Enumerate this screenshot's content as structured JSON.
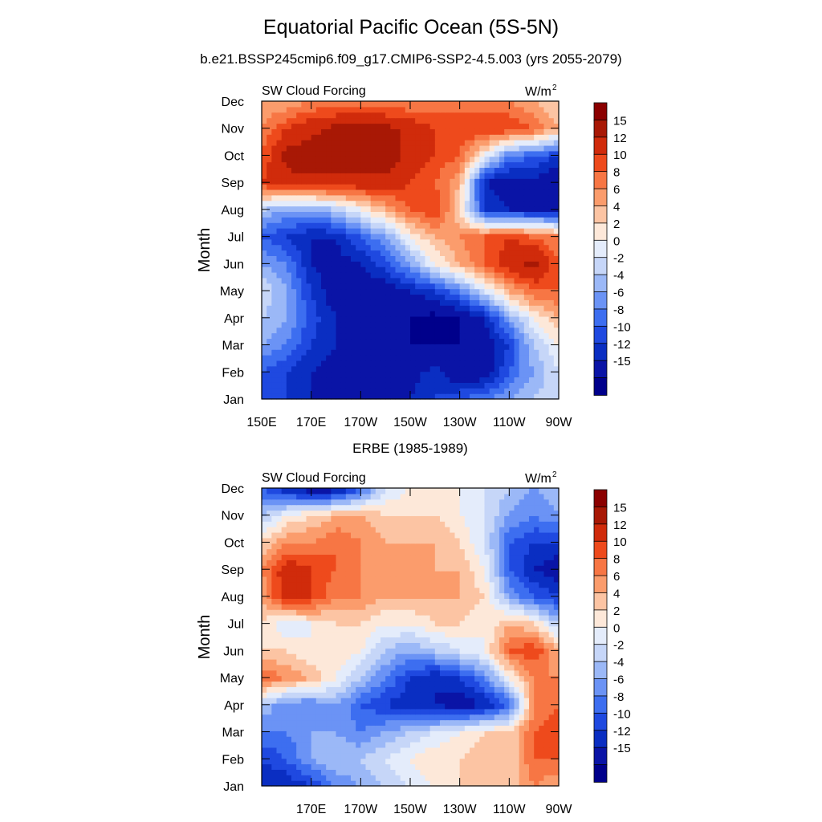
{
  "title": "Equatorial Pacific Ocean (5S-5N)",
  "subtitle": "b.e21.BSSP245cmip6.f09_g17.CMIP6-SSP2-4.5.003 (yrs 2055-2079)",
  "palette": [
    "#00008b",
    "#0a14a6",
    "#0a2ec2",
    "#1f49e0",
    "#3d6ef0",
    "#6b93f5",
    "#9bb8f7",
    "#c6d6f8",
    "#e4ecfb",
    "#fde8d9",
    "#fcc4a3",
    "#fb9c6c",
    "#f77644",
    "#ee4a1c",
    "#d02b0b",
    "#a81805",
    "#8b0000"
  ],
  "chart_data": [
    {
      "type": "heatmap",
      "panel_title": "",
      "left_label": "SW Cloud Forcing",
      "units_label": "W/m",
      "units_sup": "2",
      "ylabel": "Month",
      "x_ticks": [
        "150E",
        "170E",
        "170W",
        "150W",
        "130W",
        "110W",
        "90W"
      ],
      "y_ticks": [
        "Jan",
        "Feb",
        "Mar",
        "Apr",
        "May",
        "Jun",
        "Jul",
        "Aug",
        "Sep",
        "Oct",
        "Nov",
        "Dec"
      ],
      "xlim": [
        "150E",
        "90W"
      ],
      "colorbar_levels": [
        15,
        12,
        10,
        8,
        6,
        4,
        2,
        0,
        -2,
        -4,
        -6,
        -8,
        -10,
        -12,
        -15
      ],
      "lon_samples": [
        "150E",
        "160E",
        "170E",
        "180",
        "170W",
        "160W",
        "150W",
        "140W",
        "130W",
        "120W",
        "110W",
        "100W",
        "90W"
      ],
      "values": [
        [
          -10,
          -10,
          -12,
          -13,
          -14,
          -14,
          -12,
          -10,
          -8,
          -6,
          -4,
          -2,
          0
        ],
        [
          -8,
          -10,
          -12,
          -14,
          -15,
          -15,
          -13,
          -11,
          -15,
          -14,
          -8,
          -4,
          0
        ],
        [
          -4,
          -6,
          -10,
          -12,
          -12,
          -14,
          -15,
          -15,
          -15,
          -14,
          -10,
          -2,
          2
        ],
        [
          -2,
          -4,
          -9,
          -12,
          -14,
          -14,
          -15,
          -16,
          -15,
          -12,
          -4,
          2,
          6
        ],
        [
          0,
          -4,
          -10,
          -14,
          -14,
          -14,
          -12,
          -10,
          -6,
          0,
          6,
          10,
          10
        ],
        [
          -4,
          -6,
          -12,
          -13,
          -12,
          -9,
          -4,
          2,
          6,
          10,
          14,
          16,
          10
        ],
        [
          -8,
          -10,
          -12,
          -12,
          -8,
          -4,
          2,
          6,
          8,
          10,
          12,
          10,
          8
        ],
        [
          -2,
          -4,
          -4,
          -2,
          2,
          6,
          10,
          12,
          4,
          -10,
          -12,
          -12,
          -12
        ],
        [
          12,
          14,
          14,
          14,
          14,
          14,
          12,
          10,
          6,
          -12,
          -14,
          -13,
          -15
        ],
        [
          10,
          16,
          17,
          17,
          17,
          17,
          14,
          12,
          10,
          2,
          -6,
          -8,
          -10
        ],
        [
          8,
          12,
          14,
          16,
          16,
          16,
          14,
          12,
          12,
          12,
          12,
          10,
          6
        ],
        [
          6,
          6,
          8,
          8,
          8,
          8,
          8,
          8,
          8,
          8,
          8,
          6,
          4
        ]
      ]
    },
    {
      "type": "heatmap",
      "panel_title": "ERBE (1985-1989)",
      "left_label": "SW Cloud Forcing",
      "units_label": "W/m",
      "units_sup": "2",
      "ylabel": "Month",
      "x_ticks": [
        "",
        "170E",
        "170W",
        "150W",
        "130W",
        "110W",
        "90W"
      ],
      "y_ticks": [
        "Jan",
        "Feb",
        "Mar",
        "Apr",
        "May",
        "Jun",
        "Jul",
        "Aug",
        "Sep",
        "Oct",
        "Nov",
        "Dec"
      ],
      "xlim": [
        "150E",
        "90W"
      ],
      "colorbar_levels": [
        15,
        12,
        10,
        8,
        6,
        4,
        2,
        0,
        -2,
        -4,
        -6,
        -8,
        -10,
        -12,
        -15
      ],
      "lon_samples": [
        "150E",
        "160E",
        "170E",
        "180",
        "170W",
        "160W",
        "150W",
        "140W",
        "130W",
        "120W",
        "110W",
        "100W",
        "90W"
      ],
      "values": [
        [
          -12,
          -12,
          -10,
          -6,
          -4,
          -2,
          0,
          2,
          4,
          6,
          4,
          8,
          6
        ],
        [
          -10,
          -8,
          -4,
          -2,
          -2,
          0,
          2,
          4,
          4,
          6,
          4,
          10,
          10
        ],
        [
          -6,
          -6,
          -4,
          -4,
          -6,
          -4,
          -2,
          0,
          2,
          4,
          4,
          10,
          12
        ],
        [
          -2,
          -6,
          -6,
          -4,
          -8,
          -10,
          -12,
          -12,
          -14,
          -12,
          -8,
          8,
          10
        ],
        [
          10,
          8,
          6,
          2,
          -2,
          -6,
          -10,
          -12,
          -10,
          -6,
          2,
          8,
          8
        ],
        [
          4,
          4,
          2,
          4,
          2,
          -2,
          -4,
          -2,
          0,
          2,
          10,
          12,
          6
        ],
        [
          4,
          0,
          2,
          4,
          4,
          2,
          2,
          4,
          4,
          2,
          6,
          4,
          -2
        ],
        [
          6,
          14,
          12,
          8,
          8,
          6,
          6,
          6,
          6,
          4,
          -4,
          -8,
          -10
        ],
        [
          8,
          14,
          12,
          10,
          8,
          8,
          8,
          6,
          6,
          2,
          -8,
          -12,
          -14
        ],
        [
          4,
          8,
          8,
          10,
          8,
          6,
          6,
          6,
          4,
          0,
          -8,
          -10,
          -10
        ],
        [
          -2,
          2,
          4,
          6,
          6,
          4,
          4,
          4,
          2,
          0,
          -4,
          -6,
          -4
        ],
        [
          -8,
          -12,
          -14,
          -14,
          -8,
          0,
          2,
          2,
          2,
          0,
          -2,
          -4,
          -2
        ]
      ]
    }
  ]
}
